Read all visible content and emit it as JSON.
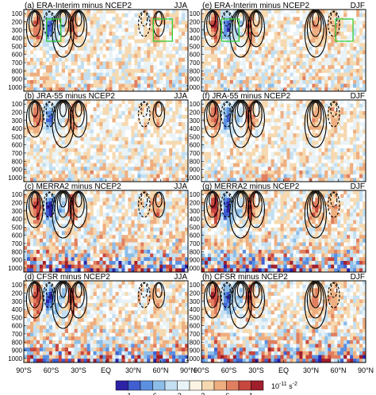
{
  "chart_data": {
    "type": "heatmap",
    "x_ticks": [
      "90°S",
      "60°S",
      "30°S",
      "EQ",
      "30°N",
      "60°N",
      "90°N"
    ],
    "y_ticks": [
      "100",
      "200",
      "300",
      "400",
      "500",
      "600",
      "700",
      "800",
      "900",
      "1000"
    ],
    "colorbar": {
      "labels": [
        "-1",
        "-.6",
        "-.2",
        ".2",
        ".6",
        "1"
      ],
      "unit": "10",
      "unit_exp": "-11",
      "unit_suffix": "s",
      "unit_suffix_exp": "-2",
      "colors": [
        "#2c22a6",
        "#3f5fd1",
        "#5b8fe0",
        "#8cbde8",
        "#c3dff1",
        "#e9f3f7",
        "#fbf4e4",
        "#f6d9b0",
        "#eeae80",
        "#e07f60",
        "#c8473e",
        "#a01f2c"
      ]
    },
    "panels": [
      {
        "id": "a",
        "title": "(a) ERA-Interim minus NCEP2",
        "season": "JJA"
      },
      {
        "id": "e",
        "title": "(e) ERA-Interim minus NCEP2",
        "season": "DJF"
      },
      {
        "id": "b",
        "title": "(b) JRA-55 minus NCEP2",
        "season": "JJA"
      },
      {
        "id": "f",
        "title": "(f) JRA-55 minus NCEP2",
        "season": "DJF"
      },
      {
        "id": "c",
        "title": "(c) MERRA2 minus NCEP2",
        "season": "JJA"
      },
      {
        "id": "g",
        "title": "(g) MERRA2 minus NCEP2",
        "season": "DJF"
      },
      {
        "id": "d",
        "title": "(d) CFSR minus NCEP2",
        "season": "JJA"
      },
      {
        "id": "h",
        "title": "(h) CFSR minus NCEP2",
        "season": "DJF"
      }
    ]
  }
}
